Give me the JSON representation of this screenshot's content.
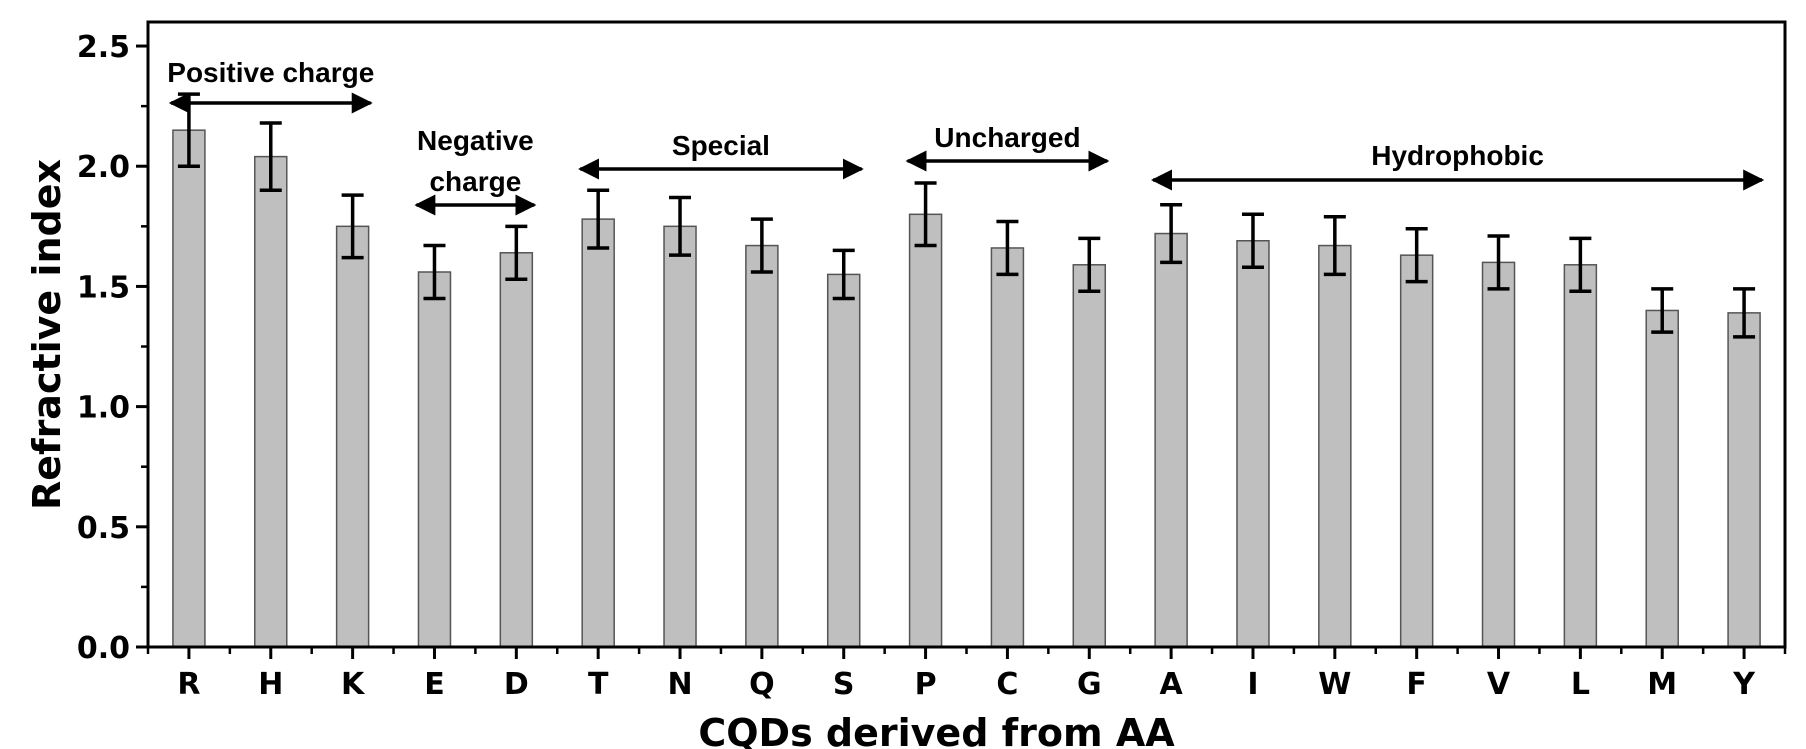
{
  "chart_data": {
    "type": "bar",
    "title": "",
    "xlabel": "CQDs derived from AA",
    "ylabel": "Refractive index",
    "ylim": [
      0,
      2.6
    ],
    "yticks": [
      "0.0",
      "0.5",
      "1.0",
      "1.5",
      "2.0",
      "2.5"
    ],
    "categories": [
      "R",
      "H",
      "K",
      "E",
      "D",
      "T",
      "N",
      "Q",
      "S",
      "P",
      "C",
      "G",
      "A",
      "I",
      "W",
      "F",
      "V",
      "L",
      "M",
      "Y"
    ],
    "values": [
      2.15,
      2.04,
      1.75,
      1.56,
      1.64,
      1.78,
      1.75,
      1.67,
      1.55,
      1.8,
      1.66,
      1.59,
      1.72,
      1.69,
      1.67,
      1.63,
      1.6,
      1.59,
      1.4,
      1.39
    ],
    "errors": [
      0.15,
      0.14,
      0.13,
      0.11,
      0.11,
      0.12,
      0.12,
      0.11,
      0.1,
      0.13,
      0.11,
      0.11,
      0.12,
      0.11,
      0.12,
      0.11,
      0.11,
      0.11,
      0.09,
      0.1
    ],
    "bar_color": "#bfbfbf",
    "grid": false,
    "groups": [
      {
        "label_lines": [
          "Positive charge"
        ],
        "from": "R",
        "to": "K"
      },
      {
        "label_lines": [
          "Negative",
          "charge"
        ],
        "from": "E",
        "to": "D"
      },
      {
        "label_lines": [
          "Special"
        ],
        "from": "T",
        "to": "S"
      },
      {
        "label_lines": [
          "Uncharged"
        ],
        "from": "P",
        "to": "G"
      },
      {
        "label_lines": [
          "Hydrophobic"
        ],
        "from": "A",
        "to": "Y"
      }
    ]
  }
}
